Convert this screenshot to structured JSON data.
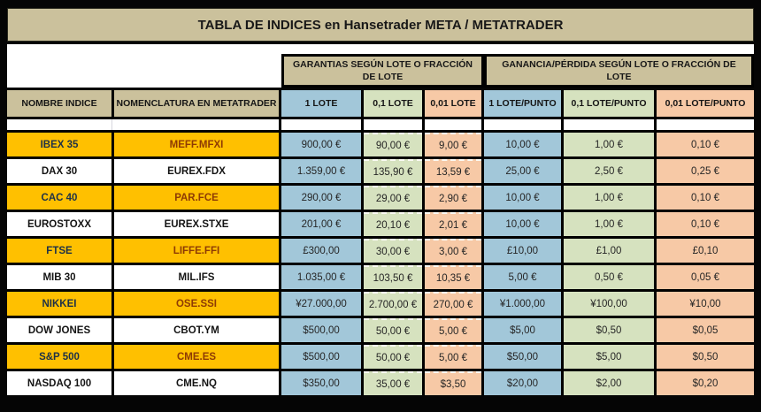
{
  "chart_data": {
    "type": "table",
    "title": "TABLA DE INDICES en Hansetrader META / METATRADER",
    "column_groups": [
      {
        "label": "GARANTIAS SEGÚN LOTE O FRACCIÓN DE LOTE",
        "columns": [
          "1 LOTE",
          "0,1 LOTE",
          "0,01 LOTE"
        ]
      },
      {
        "label": "GANANCIA/PÉRDIDA SEGÚN LOTE O FRACCIÓN DE LOTE",
        "columns": [
          "1 LOTE/PUNTO",
          "0,1 LOTE/PUNTO",
          "0,01 LOTE/PUNTO"
        ]
      }
    ],
    "columns": [
      "NOMBRE INDICE",
      "NOMENCLATURA EN METATRADER",
      "1 LOTE",
      "0,1 LOTE",
      "0,01 LOTE",
      "1 LOTE/PUNTO",
      "0,1 LOTE/PUNTO",
      "0,01 LOTE/PUNTO"
    ],
    "rows": [
      {
        "name": "IBEX 35",
        "symbol": "MEFF.MFXI",
        "highlight": true,
        "values": [
          "900,00 €",
          "90,00 €",
          "9,00 €",
          "10,00 €",
          "1,00 €",
          "0,10 €"
        ]
      },
      {
        "name": "DAX 30",
        "symbol": "EUREX.FDX",
        "highlight": false,
        "values": [
          "1.359,00 €",
          "135,90 €",
          "13,59 €",
          "25,00 €",
          "2,50 €",
          "0,25 €"
        ]
      },
      {
        "name": "CAC 40",
        "symbol": "PAR.FCE",
        "highlight": true,
        "values": [
          "290,00 €",
          "29,00 €",
          "2,90 €",
          "10,00 €",
          "1,00 €",
          "0,10 €"
        ]
      },
      {
        "name": "EUROSTOXX",
        "symbol": "EUREX.STXE",
        "highlight": false,
        "values": [
          "201,00 €",
          "20,10 €",
          "2,01 €",
          "10,00 €",
          "1,00 €",
          "0,10 €"
        ]
      },
      {
        "name": "FTSE",
        "symbol": "LIFFE.FFI",
        "highlight": true,
        "values": [
          "£300,00",
          "30,00 €",
          "3,00 €",
          "£10,00",
          "£1,00",
          "£0,10"
        ]
      },
      {
        "name": "MIB 30",
        "symbol": "MIL.IFS",
        "highlight": false,
        "values": [
          "1.035,00 €",
          "103,50 €",
          "10,35 €",
          "5,00 €",
          "0,50 €",
          "0,05 €"
        ]
      },
      {
        "name": "NIKKEI",
        "symbol": "OSE.SSI",
        "highlight": true,
        "values": [
          "¥27.000,00",
          "2.700,00 €",
          "270,00 €",
          "¥1.000,00",
          "¥100,00",
          "¥10,00"
        ]
      },
      {
        "name": "DOW JONES",
        "symbol": "CBOT.YM",
        "highlight": false,
        "values": [
          "$500,00",
          "50,00 €",
          "5,00 €",
          "$5,00",
          "$0,50",
          "$0,05"
        ]
      },
      {
        "name": "S&P 500",
        "symbol": "CME.ES",
        "highlight": true,
        "values": [
          "$500,00",
          "50,00 €",
          "5,00 €",
          "$50,00",
          "$5,00",
          "$0,50"
        ]
      },
      {
        "name": "NASDAQ 100",
        "symbol": "CME.NQ",
        "highlight": false,
        "values": [
          "$350,00",
          "35,00 €",
          "$3,50",
          "$20,00",
          "$2,00",
          "$0,20"
        ]
      }
    ],
    "colors": {
      "frame": "#000000",
      "header_tan": "#CBC19C",
      "column_blue": "#A2C7D9",
      "column_green": "#D6E2BF",
      "column_peach": "#F7C9A6",
      "row_highlight_orange": "#FFC000",
      "row_plain_white": "#FFFFFF",
      "name_text_on_orange": "#1E3147",
      "symbol_text_on_orange": "#8E3B04"
    },
    "layout": {
      "grid_lines": "thick-black",
      "legend_position": "none"
    }
  }
}
